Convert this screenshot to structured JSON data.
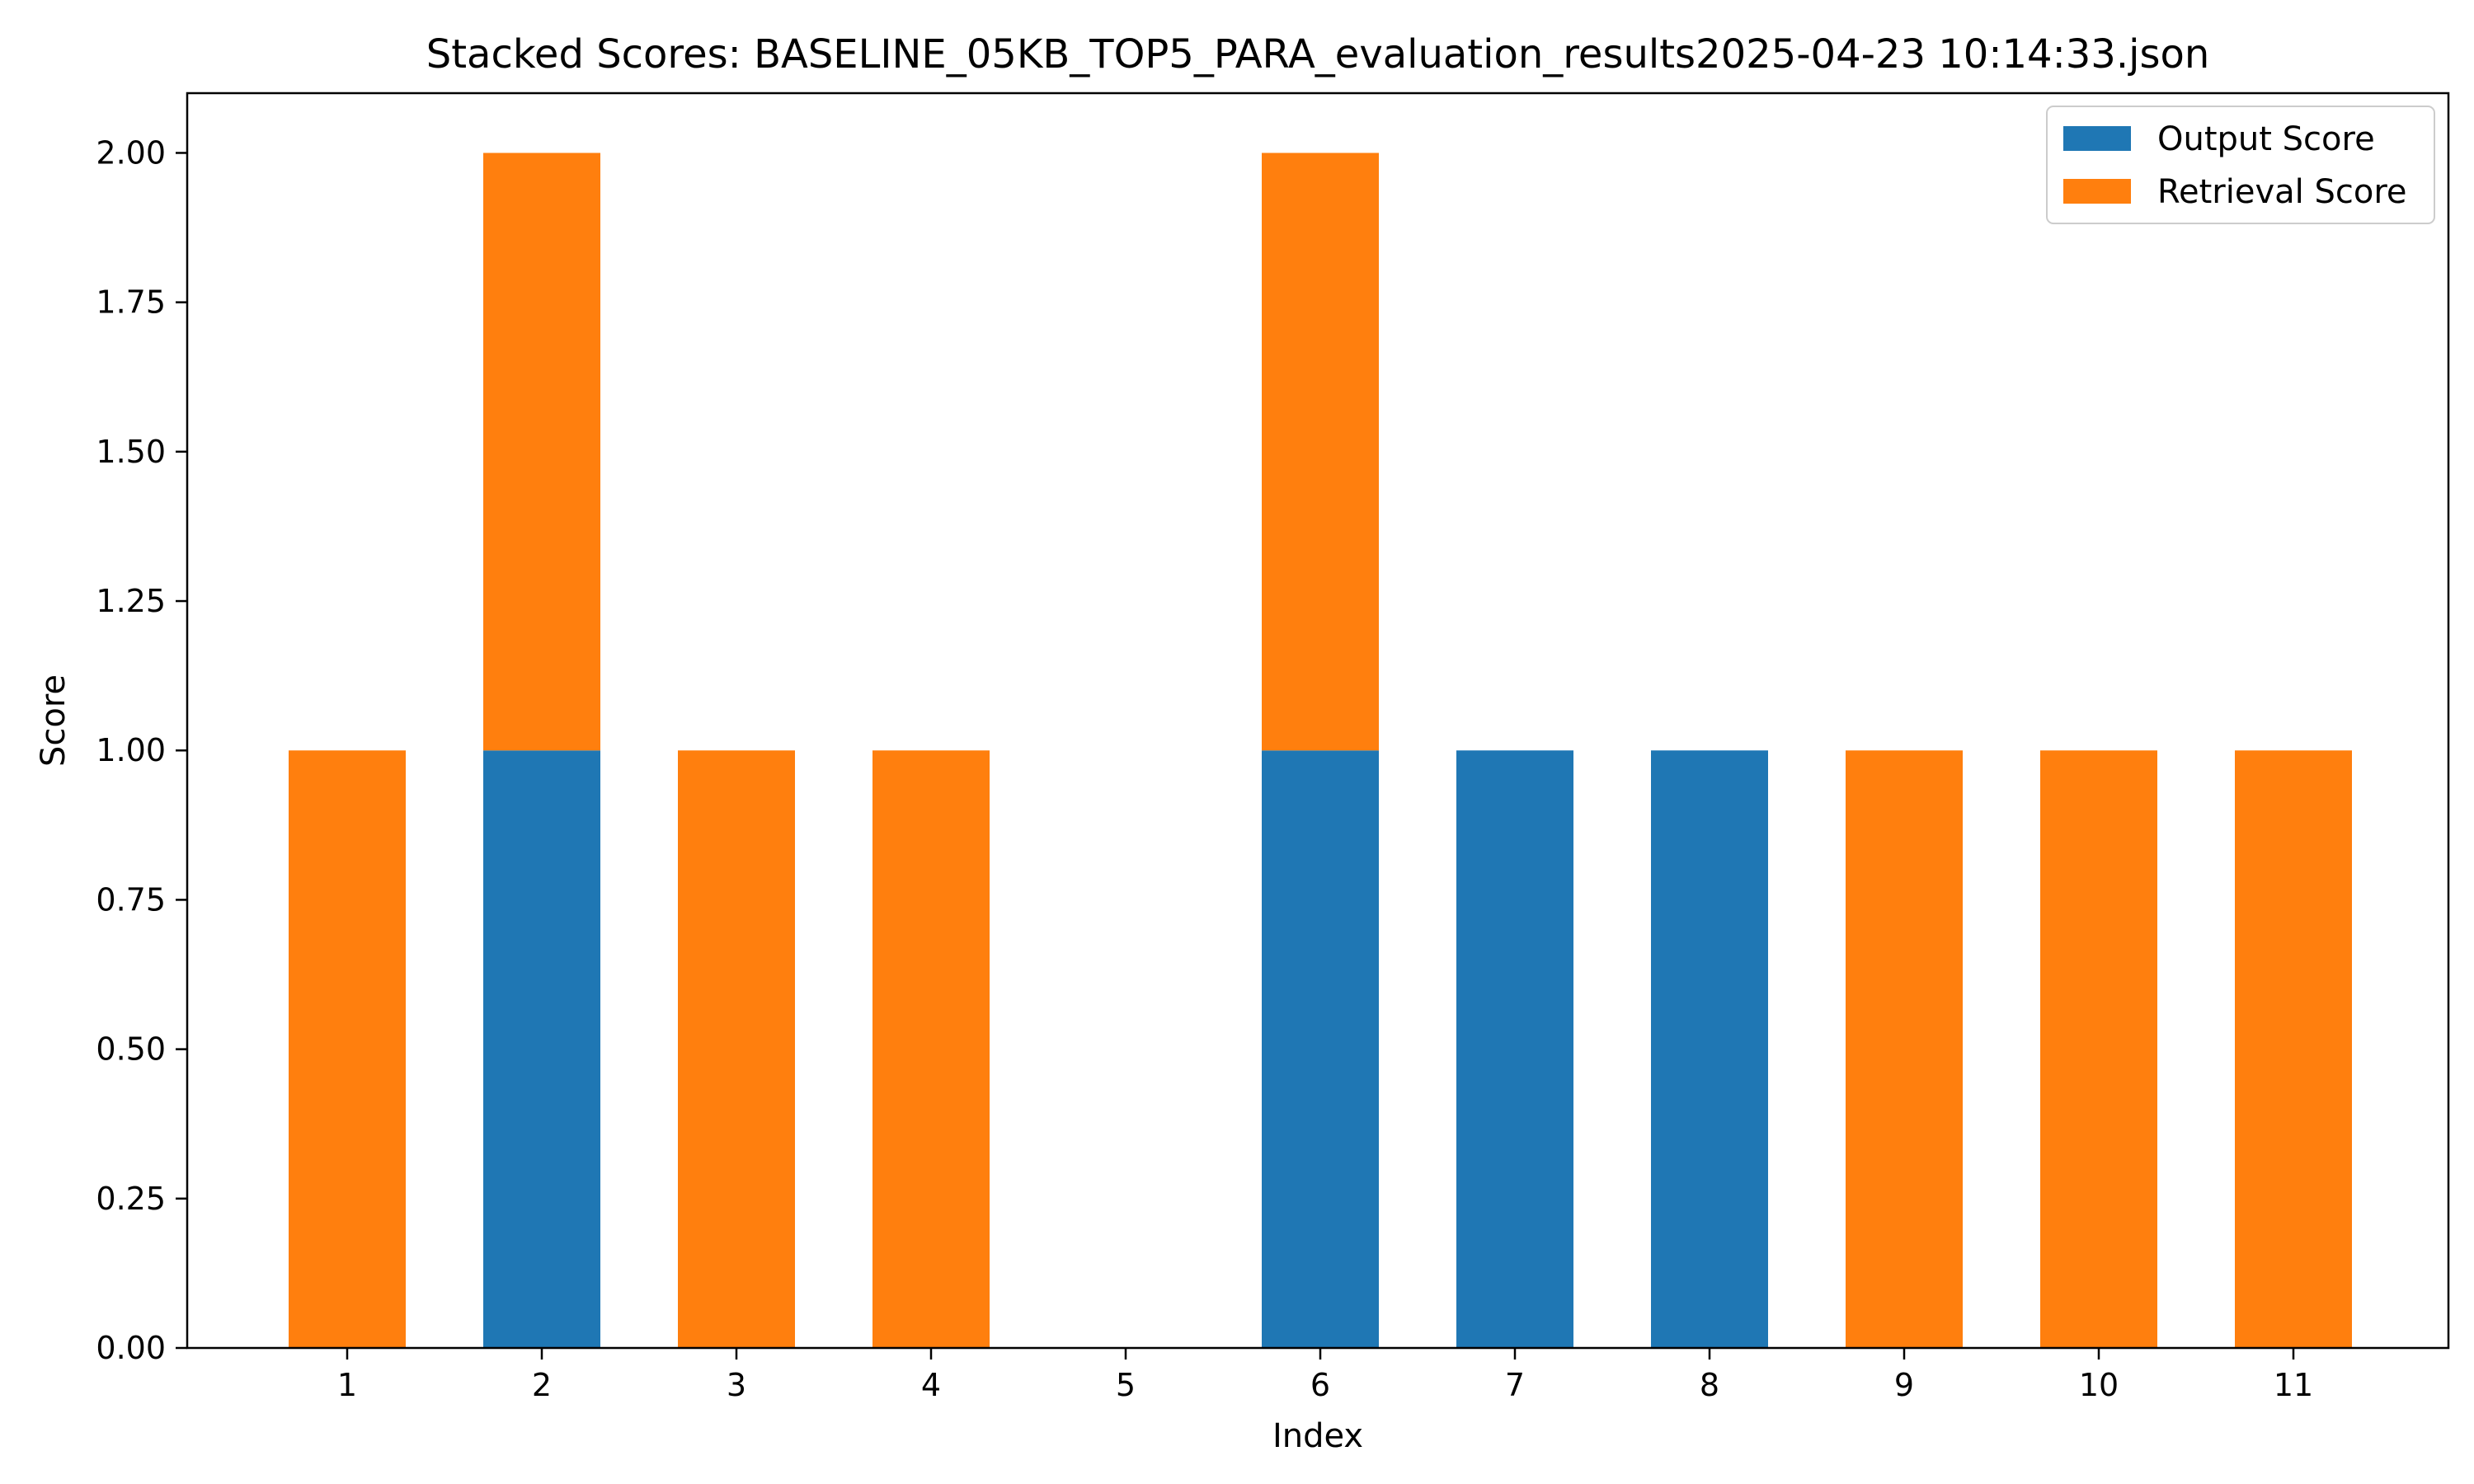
{
  "chart_data": {
    "type": "bar",
    "stacked": true,
    "title": "Stacked Scores: BASELINE_05KB_TOP5_PARA_evaluation_results2025-04-23 10:14:33.json",
    "xlabel": "Index",
    "ylabel": "Score",
    "categories": [
      "1",
      "2",
      "3",
      "4",
      "5",
      "6",
      "7",
      "8",
      "9",
      "10",
      "11"
    ],
    "series": [
      {
        "name": "Output Score",
        "color": "#1f77b4",
        "values": [
          0,
          1,
          0,
          0,
          0,
          1,
          1,
          1,
          0,
          0,
          0
        ]
      },
      {
        "name": "Retrieval Score",
        "color": "#ff7f0e",
        "values": [
          1,
          1,
          1,
          1,
          0,
          1,
          0,
          0,
          1,
          1,
          1
        ]
      }
    ],
    "ylim": [
      0,
      2.1
    ],
    "yticks": [
      "0.00",
      "0.25",
      "0.50",
      "0.75",
      "1.00",
      "1.25",
      "1.50",
      "1.75",
      "2.00"
    ],
    "grid": false,
    "legend_position": "top-right"
  }
}
